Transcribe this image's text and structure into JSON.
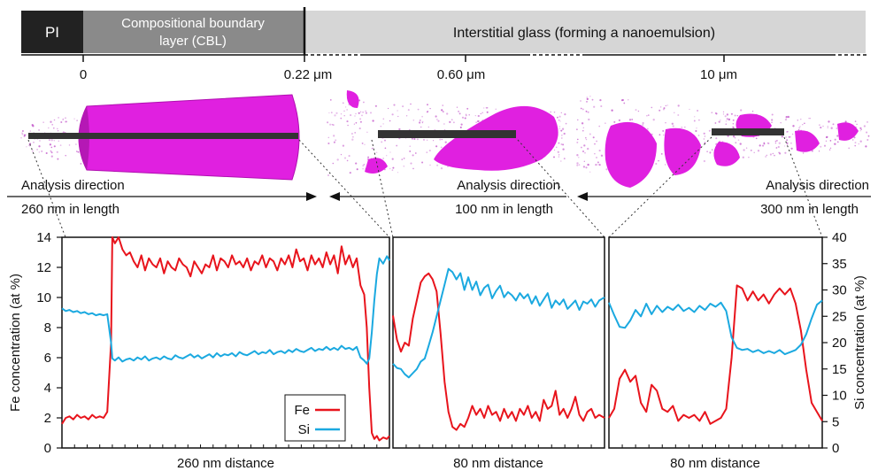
{
  "header": {
    "pi_label": "PI",
    "cbl_label_line1": "Compositional boundary",
    "cbl_label_line2": "layer (CBL)",
    "glass_label": "Interstitial glass (forming a nanoemulsion)",
    "pos_0": "0",
    "pos_022": "0.22 μm",
    "pos_060": "0.60 μm",
    "pos_10": "10 μm"
  },
  "reconstructions": {
    "left": {
      "direction_label": "Analysis direction",
      "length_label": "260 nm in length"
    },
    "middle": {
      "direction_label": "Analysis direction",
      "length_label": "100 nm in length"
    },
    "right": {
      "direction_label": "Analysis direction",
      "length_label": "300 nm in length"
    }
  },
  "colors": {
    "fe": "#e8141c",
    "si": "#1ba9e0",
    "cone": "#e020e0",
    "bar_pi": "#222222",
    "bar_cbl": "#8a8a8a",
    "bar_glass": "#d6d6d6"
  },
  "chart_data": [
    {
      "type": "line",
      "panel": "left",
      "xlabel": "260 nm distance",
      "ylabel": "Fe concentration (at %)",
      "ylim": [
        0,
        14
      ],
      "yticks": [
        0,
        2,
        4,
        6,
        8,
        10,
        12,
        14
      ],
      "xlim": [
        0,
        260
      ],
      "series": [
        {
          "name": "Fe",
          "axis": "fe",
          "x": [
            0,
            3,
            6,
            9,
            12,
            15,
            18,
            21,
            24,
            27,
            30,
            33,
            36,
            39,
            40,
            42,
            45,
            48,
            51,
            54,
            57,
            60,
            63,
            66,
            69,
            72,
            75,
            78,
            81,
            84,
            87,
            90,
            93,
            96,
            99,
            102,
            105,
            108,
            111,
            114,
            117,
            120,
            123,
            126,
            129,
            132,
            135,
            138,
            141,
            144,
            147,
            150,
            153,
            156,
            159,
            162,
            165,
            168,
            171,
            174,
            177,
            180,
            183,
            186,
            189,
            192,
            195,
            198,
            201,
            204,
            207,
            210,
            213,
            216,
            219,
            222,
            225,
            228,
            231,
            234,
            237,
            240,
            242,
            244,
            246,
            248,
            250,
            252,
            255,
            258,
            260
          ],
          "y": [
            1.6,
            2.0,
            2.1,
            1.9,
            2.2,
            2.0,
            2.1,
            1.9,
            2.2,
            2.0,
            2.1,
            2.0,
            2.4,
            7.0,
            14.0,
            13.6,
            14.0,
            13.2,
            12.8,
            13.0,
            12.4,
            12.0,
            12.8,
            11.8,
            12.6,
            12.2,
            12.0,
            12.6,
            11.6,
            12.4,
            12.0,
            11.8,
            12.6,
            12.2,
            12.0,
            11.4,
            12.4,
            12.0,
            11.6,
            12.2,
            12.0,
            12.8,
            11.8,
            12.6,
            12.4,
            12.0,
            12.8,
            12.2,
            12.4,
            12.0,
            12.6,
            11.8,
            12.4,
            12.2,
            12.8,
            12.0,
            12.6,
            12.4,
            11.8,
            12.6,
            12.2,
            12.8,
            12.0,
            13.2,
            12.4,
            12.6,
            11.8,
            12.8,
            12.2,
            12.6,
            12.0,
            13.0,
            12.2,
            12.8,
            11.6,
            13.4,
            12.2,
            12.8,
            12.0,
            12.6,
            10.8,
            10.2,
            8.0,
            4.0,
            1.0,
            0.6,
            0.8,
            0.5,
            0.7,
            0.6,
            0.8
          ]
        },
        {
          "name": "Si",
          "axis": "si",
          "x": [
            0,
            3,
            6,
            9,
            12,
            15,
            18,
            21,
            24,
            27,
            30,
            33,
            36,
            39,
            40,
            42,
            45,
            48,
            51,
            54,
            57,
            60,
            63,
            66,
            69,
            72,
            75,
            78,
            81,
            84,
            87,
            90,
            93,
            96,
            99,
            102,
            105,
            108,
            111,
            114,
            117,
            120,
            123,
            126,
            129,
            132,
            135,
            138,
            141,
            144,
            147,
            150,
            153,
            156,
            159,
            162,
            165,
            168,
            171,
            174,
            177,
            180,
            183,
            186,
            189,
            192,
            195,
            198,
            201,
            204,
            207,
            210,
            213,
            216,
            219,
            222,
            225,
            228,
            231,
            234,
            237,
            240,
            242,
            244,
            246,
            248,
            250,
            252,
            255,
            258,
            260
          ],
          "y": [
            26.5,
            26.0,
            26.2,
            25.8,
            26.0,
            25.6,
            25.8,
            25.4,
            25.6,
            25.2,
            25.4,
            25.2,
            25.4,
            20.0,
            17.0,
            16.6,
            17.2,
            16.4,
            16.8,
            17.0,
            16.6,
            17.2,
            16.8,
            17.4,
            16.6,
            17.0,
            17.2,
            16.8,
            17.4,
            17.0,
            16.8,
            17.6,
            17.2,
            17.0,
            17.4,
            17.8,
            17.2,
            17.6,
            17.0,
            17.4,
            17.8,
            17.2,
            18.0,
            17.4,
            17.8,
            17.6,
            18.0,
            17.4,
            18.2,
            17.8,
            17.6,
            18.0,
            18.4,
            17.8,
            18.2,
            18.0,
            18.6,
            17.8,
            18.2,
            18.4,
            18.0,
            18.6,
            18.2,
            18.8,
            18.4,
            18.2,
            18.6,
            19.0,
            18.4,
            18.8,
            18.6,
            19.2,
            18.6,
            19.0,
            18.6,
            19.4,
            18.8,
            19.0,
            18.6,
            19.2,
            17.2,
            16.6,
            16.0,
            17.0,
            22.0,
            28.0,
            33.0,
            36.0,
            35.0,
            36.4,
            35.6
          ]
        }
      ],
      "legend": {
        "entries": [
          "Fe",
          "Si"
        ],
        "position": "bottom-right"
      }
    },
    {
      "type": "line",
      "panel": "middle",
      "xlabel": "80 nm distance",
      "xlim": [
        0,
        80
      ],
      "series": [
        {
          "name": "Fe",
          "axis": "fe",
          "x": [
            0,
            1.5,
            3,
            4.5,
            6,
            7.5,
            9,
            10.5,
            12,
            13.5,
            15,
            16.5,
            18,
            19.5,
            21,
            22.5,
            24,
            25.5,
            27,
            28.5,
            30,
            31.5,
            33,
            34.5,
            36,
            37.5,
            39,
            40.5,
            42,
            43.5,
            45,
            46.5,
            48,
            49.5,
            51,
            52.5,
            54,
            55.5,
            57,
            58.5,
            60,
            61.5,
            63,
            64.5,
            66,
            67.5,
            69,
            70.5,
            72,
            73.5,
            75,
            76.5,
            78,
            80
          ],
          "y": [
            8.8,
            7.2,
            6.4,
            7.0,
            6.8,
            8.6,
            9.8,
            11.0,
            11.4,
            11.6,
            11.2,
            10.4,
            7.6,
            4.4,
            2.4,
            1.4,
            1.2,
            1.6,
            1.4,
            2.0,
            2.8,
            2.2,
            2.6,
            2.0,
            2.8,
            2.2,
            2.4,
            1.8,
            2.6,
            2.0,
            2.4,
            1.8,
            2.6,
            2.2,
            2.8,
            2.0,
            2.4,
            1.8,
            3.2,
            2.6,
            2.8,
            3.8,
            2.2,
            2.6,
            2.0,
            2.6,
            3.4,
            2.2,
            1.8,
            2.4,
            2.6,
            2.0,
            2.2,
            2.0
          ]
        },
        {
          "name": "Si",
          "axis": "si",
          "x": [
            0,
            1.5,
            3,
            4.5,
            6,
            7.5,
            9,
            10.5,
            12,
            13.5,
            15,
            16.5,
            18,
            19.5,
            21,
            22.5,
            24,
            25.5,
            27,
            28.5,
            30,
            31.5,
            33,
            34.5,
            36,
            37.5,
            39,
            40.5,
            42,
            43.5,
            45,
            46.5,
            48,
            49.5,
            51,
            52.5,
            54,
            55.5,
            57,
            58.5,
            60,
            61.5,
            63,
            64.5,
            66,
            67.5,
            69,
            70.5,
            72,
            73.5,
            75,
            76.5,
            78,
            80
          ],
          "y": [
            16.0,
            15.2,
            15.0,
            14.0,
            13.4,
            14.2,
            15.0,
            16.4,
            17.0,
            19.4,
            22.0,
            25.0,
            28.0,
            31.0,
            34.0,
            33.4,
            32.0,
            33.2,
            30.0,
            32.4,
            30.0,
            31.6,
            29.0,
            30.4,
            31.0,
            28.4,
            29.8,
            30.8,
            28.6,
            29.6,
            29.0,
            28.0,
            29.4,
            28.4,
            29.2,
            27.4,
            28.8,
            27.0,
            28.2,
            29.4,
            26.6,
            28.0,
            27.2,
            28.2,
            26.4,
            27.2,
            28.0,
            26.2,
            27.8,
            27.4,
            28.2,
            26.8,
            28.0,
            28.6
          ]
        }
      ]
    },
    {
      "type": "line",
      "panel": "right",
      "xlabel": "80 nm distance",
      "ylabel_right": "Si concentration (at %)",
      "ylim_right": [
        0,
        40
      ],
      "yticks_right": [
        0,
        5,
        10,
        15,
        20,
        25,
        30,
        35,
        40
      ],
      "xlim": [
        0,
        80
      ],
      "series": [
        {
          "name": "Fe",
          "axis": "fe",
          "x": [
            0,
            2,
            4,
            6,
            8,
            10,
            12,
            14,
            16,
            18,
            20,
            22,
            24,
            26,
            28,
            30,
            32,
            34,
            36,
            38,
            40,
            42,
            44,
            46,
            48,
            50,
            52,
            54,
            56,
            58,
            60,
            62,
            64,
            66,
            68,
            70,
            72,
            74,
            76,
            78,
            80
          ],
          "y": [
            2.0,
            2.6,
            4.6,
            5.2,
            4.4,
            4.8,
            3.0,
            2.4,
            4.2,
            3.8,
            2.6,
            2.4,
            2.8,
            1.8,
            2.2,
            2.0,
            2.2,
            1.8,
            2.4,
            1.6,
            1.8,
            2.0,
            2.6,
            6.0,
            10.8,
            10.6,
            9.8,
            10.4,
            9.8,
            10.2,
            9.6,
            10.2,
            10.6,
            10.2,
            10.6,
            9.6,
            7.8,
            5.2,
            3.0,
            2.4,
            1.8
          ]
        },
        {
          "name": "Si",
          "axis": "si",
          "x": [
            0,
            2,
            4,
            6,
            8,
            10,
            12,
            14,
            16,
            18,
            20,
            22,
            24,
            26,
            28,
            30,
            32,
            34,
            36,
            38,
            40,
            42,
            44,
            46,
            48,
            50,
            52,
            54,
            56,
            58,
            60,
            62,
            64,
            66,
            68,
            70,
            72,
            74,
            76,
            78,
            80
          ],
          "y": [
            27.6,
            25.2,
            23.0,
            22.8,
            24.2,
            26.2,
            25.0,
            27.4,
            25.4,
            27.0,
            25.8,
            26.8,
            26.2,
            27.2,
            26.0,
            26.6,
            25.8,
            27.0,
            26.2,
            27.4,
            26.8,
            27.6,
            26.0,
            21.0,
            19.0,
            18.6,
            18.8,
            18.2,
            18.6,
            18.0,
            18.4,
            18.0,
            18.6,
            17.8,
            18.2,
            18.6,
            19.6,
            21.6,
            24.6,
            27.2,
            28.0
          ]
        }
      ]
    }
  ]
}
